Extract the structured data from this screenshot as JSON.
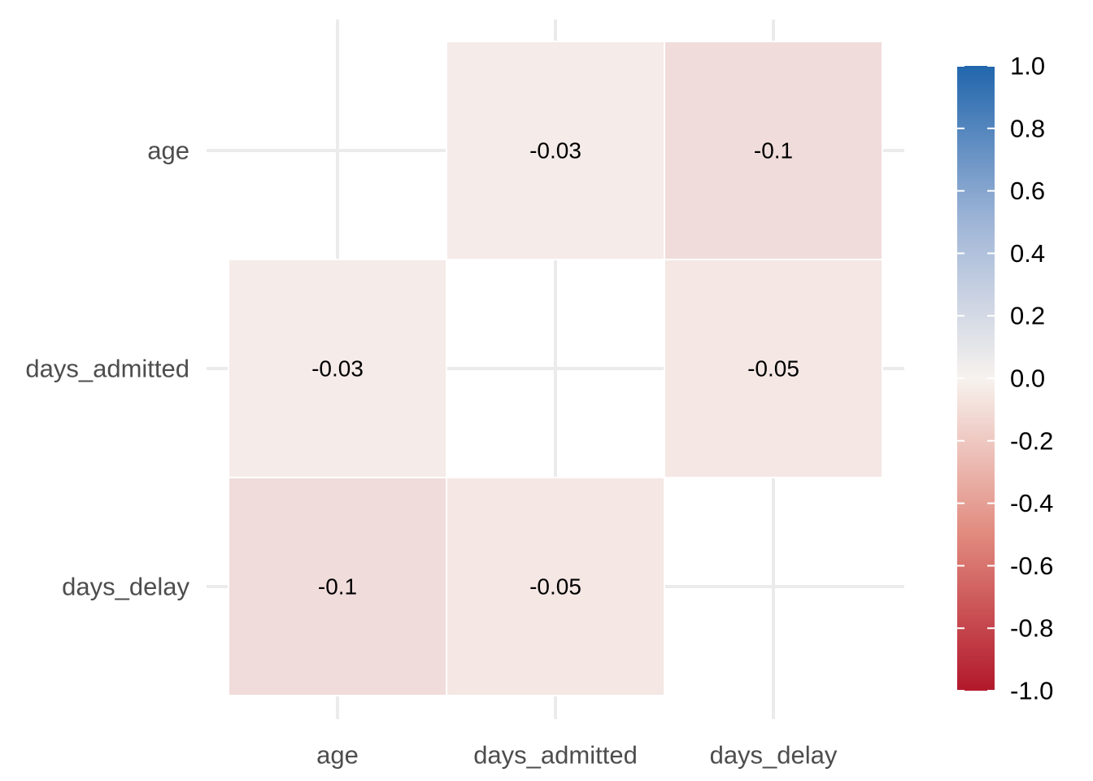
{
  "chart_data": {
    "type": "heatmap",
    "title": "",
    "xlabel": "",
    "ylabel": "",
    "x_categories": [
      "age",
      "days_admitted",
      "days_delay"
    ],
    "y_categories": [
      "age",
      "days_admitted",
      "days_delay"
    ],
    "cells": [
      {
        "x": "days_admitted",
        "y": "age",
        "value": -0.03,
        "label": "-0.03"
      },
      {
        "x": "days_delay",
        "y": "age",
        "value": -0.1,
        "label": "-0.1"
      },
      {
        "x": "age",
        "y": "days_admitted",
        "value": -0.03,
        "label": "-0.03"
      },
      {
        "x": "days_delay",
        "y": "days_admitted",
        "value": -0.05,
        "label": "-0.05"
      },
      {
        "x": "age",
        "y": "days_delay",
        "value": -0.1,
        "label": "-0.1"
      },
      {
        "x": "days_admitted",
        "y": "days_delay",
        "value": -0.05,
        "label": "-0.05"
      }
    ],
    "legend": {
      "position": "right",
      "range": [
        -1.0,
        1.0
      ],
      "ticks": [
        {
          "value": 1.0,
          "label": "1.0"
        },
        {
          "value": 0.8,
          "label": "0.8"
        },
        {
          "value": 0.6,
          "label": "0.6"
        },
        {
          "value": 0.4,
          "label": "0.4"
        },
        {
          "value": 0.2,
          "label": "0.2"
        },
        {
          "value": 0.0,
          "label": "0.0"
        },
        {
          "value": -0.2,
          "label": "-0.2"
        },
        {
          "value": -0.4,
          "label": "-0.4"
        },
        {
          "value": -0.6,
          "label": "-0.6"
        },
        {
          "value": -0.8,
          "label": "-0.8"
        },
        {
          "value": -1.0,
          "label": "-1.0"
        }
      ],
      "colors": {
        "low": "#b2182b",
        "mid": "#f7f2ee",
        "high": "#2166ac"
      }
    },
    "grid": true
  }
}
